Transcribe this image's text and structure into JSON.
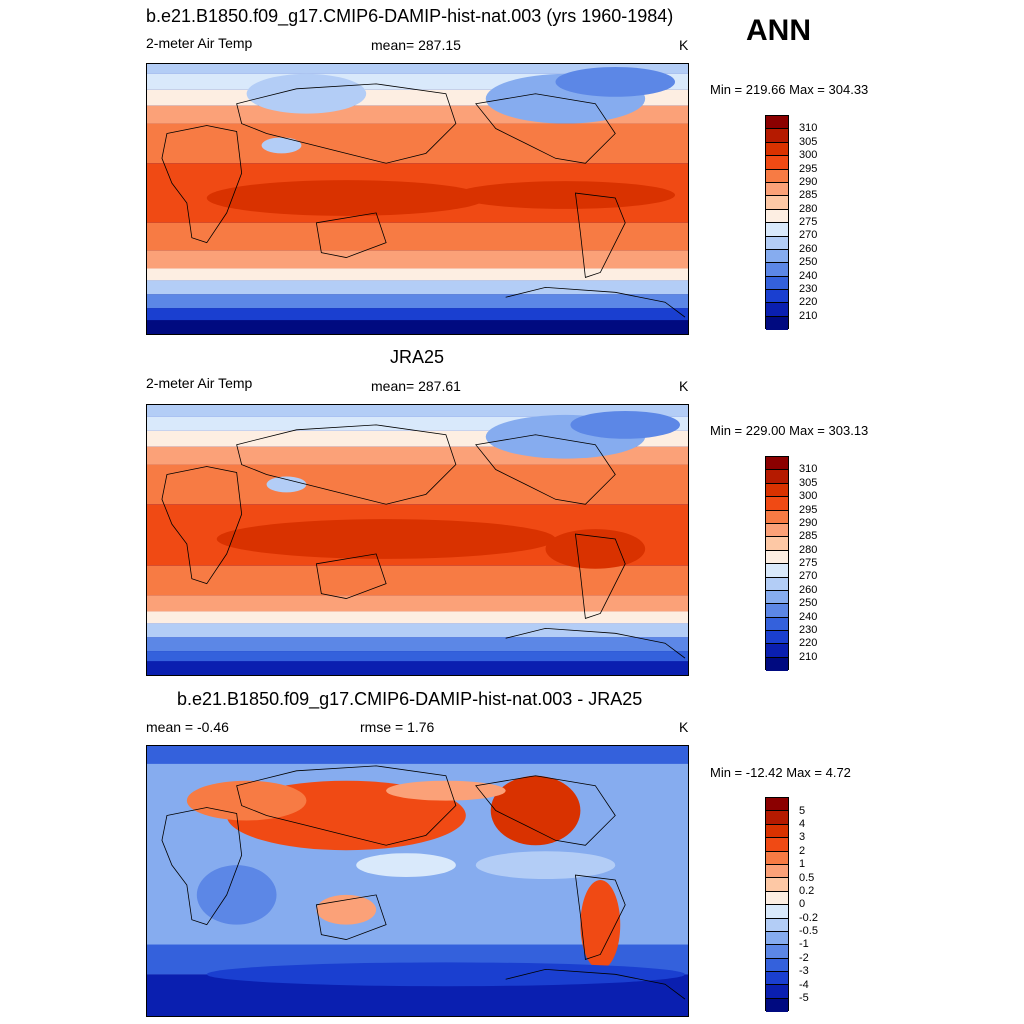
{
  "season": "ANN",
  "panels": [
    {
      "title": "b.e21.B1850.f09_g17.CMIP6-DAMIP-hist-nat.003 (yrs 1960-1984)",
      "left_label": "2-meter Air Temp",
      "center_label": "mean= 287.15",
      "units": "K",
      "minmax": "Min = 219.66 Max = 304.33",
      "colorbar": {
        "labels": [
          "310",
          "305",
          "300",
          "295",
          "290",
          "285",
          "280",
          "275",
          "270",
          "260",
          "250",
          "240",
          "230",
          "220",
          "210"
        ],
        "colors": [
          "#8b0000",
          "#b51a00",
          "#d93200",
          "#f04a14",
          "#f77b44",
          "#fba178",
          "#fdc8a5",
          "#fdeee2",
          "#d9e9fb",
          "#b3cdf6",
          "#86acef",
          "#5c87e6",
          "#3461dc",
          "#1a3fd0",
          "#0a1fb0",
          "#000a80"
        ]
      }
    },
    {
      "title": "JRA25",
      "left_label": "2-meter Air Temp",
      "center_label": "mean= 287.61",
      "units": "K",
      "minmax": "Min = 229.00 Max = 303.13",
      "colorbar": {
        "labels": [
          "310",
          "305",
          "300",
          "295",
          "290",
          "285",
          "280",
          "275",
          "270",
          "260",
          "250",
          "240",
          "230",
          "220",
          "210"
        ],
        "colors": [
          "#8b0000",
          "#b51a00",
          "#d93200",
          "#f04a14",
          "#f77b44",
          "#fba178",
          "#fdc8a5",
          "#fdeee2",
          "#d9e9fb",
          "#b3cdf6",
          "#86acef",
          "#5c87e6",
          "#3461dc",
          "#1a3fd0",
          "#0a1fb0",
          "#000a80"
        ]
      }
    },
    {
      "title": "b.e21.B1850.f09_g17.CMIP6-DAMIP-hist-nat.003 - JRA25",
      "left_label": "mean =  -0.46",
      "center_label": "rmse =   1.76",
      "units": "K",
      "minmax": "Min = -12.42 Max =   4.72",
      "colorbar": {
        "labels": [
          "5",
          "4",
          "3",
          "2",
          "1",
          "0.5",
          "0.2",
          "0",
          "-0.2",
          "-0.5",
          "-1",
          "-2",
          "-3",
          "-4",
          "-5"
        ],
        "colors": [
          "#8b0000",
          "#b51a00",
          "#d93200",
          "#f04a14",
          "#f77b44",
          "#fba178",
          "#fdc8a5",
          "#fdeee2",
          "#d9e9fb",
          "#b3cdf6",
          "#86acef",
          "#5c87e6",
          "#3461dc",
          "#1a3fd0",
          "#0a1fb0",
          "#000a80"
        ]
      }
    }
  ]
}
